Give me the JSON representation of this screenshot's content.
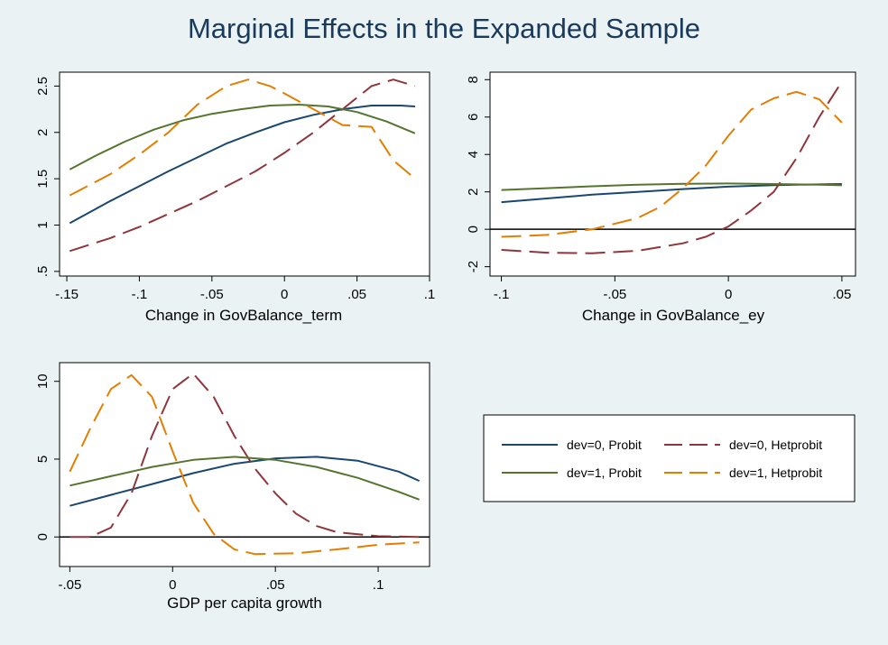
{
  "title": "Marginal Effects in the Expanded Sample",
  "colors": {
    "background": "#eaf2f3",
    "plot_bg": "#ffffff",
    "navy": "#1a476f",
    "maroon": "#90353b",
    "green": "#55752f",
    "orange": "#e37e00"
  },
  "legend": {
    "placement": "right of bottom-left panel",
    "entries": [
      {
        "label": "dev=0, Probit",
        "color": "#1a476f",
        "dash": "solid"
      },
      {
        "label": "dev=0, Hetprobit",
        "color": "#90353b",
        "dash": "dash"
      },
      {
        "label": "dev=1, Probit",
        "color": "#55752f",
        "dash": "solid"
      },
      {
        "label": "dev=1, Hetprobit",
        "color": "#e37e00",
        "dash": "dash"
      }
    ]
  },
  "chart_data": [
    {
      "type": "line",
      "xlabel": "Change in GovBalance_term",
      "ylabel": "",
      "xlim": [
        -0.155,
        0.1
      ],
      "ylim": [
        0.45,
        2.65
      ],
      "xticks": [
        {
          "v": -0.15,
          "label": "-.15"
        },
        {
          "v": -0.1,
          "label": "-.1"
        },
        {
          "v": -0.05,
          "label": "-.05"
        },
        {
          "v": 0,
          "label": "0"
        },
        {
          "v": 0.05,
          "label": ".05"
        },
        {
          "v": 0.1,
          "label": ".1"
        }
      ],
      "yticks": [
        {
          "v": 0.5,
          "label": ".5"
        },
        {
          "v": 1,
          "label": "1"
        },
        {
          "v": 1.5,
          "label": "1.5"
        },
        {
          "v": 2,
          "label": "2"
        },
        {
          "v": 2.5,
          "label": "2.5"
        }
      ],
      "zero_line": false,
      "series": [
        {
          "name": "dev=0, Probit",
          "color": "#1a476f",
          "dash": "solid",
          "points": [
            [
              -0.148,
              1.02
            ],
            [
              -0.12,
              1.26
            ],
            [
              -0.1,
              1.42
            ],
            [
              -0.08,
              1.58
            ],
            [
              -0.06,
              1.73
            ],
            [
              -0.04,
              1.88
            ],
            [
              -0.02,
              2.0
            ],
            [
              0.0,
              2.11
            ],
            [
              0.02,
              2.19
            ],
            [
              0.04,
              2.25
            ],
            [
              0.06,
              2.29
            ],
            [
              0.08,
              2.29
            ],
            [
              0.09,
              2.28
            ]
          ]
        },
        {
          "name": "dev=0, Hetprobit",
          "color": "#90353b",
          "dash": "dash",
          "points": [
            [
              -0.148,
              0.72
            ],
            [
              -0.12,
              0.86
            ],
            [
              -0.1,
              0.98
            ],
            [
              -0.08,
              1.12
            ],
            [
              -0.06,
              1.26
            ],
            [
              -0.04,
              1.42
            ],
            [
              -0.02,
              1.58
            ],
            [
              0.0,
              1.78
            ],
            [
              0.02,
              2.0
            ],
            [
              0.04,
              2.25
            ],
            [
              0.06,
              2.5
            ],
            [
              0.075,
              2.57
            ],
            [
              0.09,
              2.5
            ]
          ]
        },
        {
          "name": "dev=1, Probit",
          "color": "#55752f",
          "dash": "solid",
          "points": [
            [
              -0.148,
              1.6
            ],
            [
              -0.13,
              1.75
            ],
            [
              -0.11,
              1.9
            ],
            [
              -0.09,
              2.03
            ],
            [
              -0.07,
              2.13
            ],
            [
              -0.05,
              2.2
            ],
            [
              -0.03,
              2.25
            ],
            [
              -0.01,
              2.29
            ],
            [
              0.01,
              2.3
            ],
            [
              0.03,
              2.28
            ],
            [
              0.05,
              2.22
            ],
            [
              0.07,
              2.12
            ],
            [
              0.09,
              1.99
            ]
          ]
        },
        {
          "name": "dev=1, Hetprobit",
          "color": "#e37e00",
          "dash": "dash",
          "points": [
            [
              -0.148,
              1.32
            ],
            [
              -0.12,
              1.55
            ],
            [
              -0.1,
              1.76
            ],
            [
              -0.08,
              2.0
            ],
            [
              -0.06,
              2.3
            ],
            [
              -0.04,
              2.5
            ],
            [
              -0.025,
              2.57
            ],
            [
              -0.01,
              2.5
            ],
            [
              0.0,
              2.42
            ],
            [
              0.02,
              2.25
            ],
            [
              0.04,
              2.08
            ],
            [
              0.06,
              2.06
            ],
            [
              0.075,
              1.7
            ],
            [
              0.09,
              1.5
            ]
          ]
        }
      ]
    },
    {
      "type": "line",
      "xlabel": "Change in GovBalance_ey",
      "ylabel": "",
      "xlim": [
        -0.105,
        0.056
      ],
      "ylim": [
        -2.5,
        8.4
      ],
      "xticks": [
        {
          "v": -0.1,
          "label": "-.1"
        },
        {
          "v": -0.05,
          "label": "-.05"
        },
        {
          "v": 0,
          "label": "0"
        },
        {
          "v": 0.05,
          "label": ".05"
        }
      ],
      "yticks": [
        {
          "v": -2,
          "label": "-2"
        },
        {
          "v": 0,
          "label": "0"
        },
        {
          "v": 2,
          "label": "2"
        },
        {
          "v": 4,
          "label": "4"
        },
        {
          "v": 6,
          "label": "6"
        },
        {
          "v": 8,
          "label": "8"
        }
      ],
      "zero_line": true,
      "series": [
        {
          "name": "dev=0, Probit",
          "color": "#1a476f",
          "dash": "solid",
          "points": [
            [
              -0.1,
              1.45
            ],
            [
              -0.08,
              1.65
            ],
            [
              -0.06,
              1.85
            ],
            [
              -0.04,
              2.0
            ],
            [
              -0.02,
              2.15
            ],
            [
              0.0,
              2.28
            ],
            [
              0.02,
              2.36
            ],
            [
              0.04,
              2.4
            ],
            [
              0.05,
              2.42
            ]
          ]
        },
        {
          "name": "dev=0, Hetprobit",
          "color": "#90353b",
          "dash": "dash",
          "points": [
            [
              -0.1,
              -1.1
            ],
            [
              -0.08,
              -1.25
            ],
            [
              -0.06,
              -1.28
            ],
            [
              -0.04,
              -1.15
            ],
            [
              -0.02,
              -0.75
            ],
            [
              -0.01,
              -0.4
            ],
            [
              0.0,
              0.15
            ],
            [
              0.01,
              1.0
            ],
            [
              0.02,
              2.0
            ],
            [
              0.03,
              3.8
            ],
            [
              0.04,
              6.0
            ],
            [
              0.05,
              7.9
            ]
          ]
        },
        {
          "name": "dev=1, Probit",
          "color": "#55752f",
          "dash": "solid",
          "points": [
            [
              -0.1,
              2.1
            ],
            [
              -0.08,
              2.2
            ],
            [
              -0.06,
              2.3
            ],
            [
              -0.04,
              2.38
            ],
            [
              -0.02,
              2.43
            ],
            [
              0.0,
              2.45
            ],
            [
              0.02,
              2.42
            ],
            [
              0.04,
              2.38
            ],
            [
              0.05,
              2.35
            ]
          ]
        },
        {
          "name": "dev=1, Hetprobit",
          "color": "#e37e00",
          "dash": "dash",
          "points": [
            [
              -0.1,
              -0.4
            ],
            [
              -0.08,
              -0.3
            ],
            [
              -0.06,
              0.0
            ],
            [
              -0.04,
              0.6
            ],
            [
              -0.03,
              1.2
            ],
            [
              -0.02,
              2.2
            ],
            [
              -0.01,
              3.4
            ],
            [
              0.0,
              5.0
            ],
            [
              0.01,
              6.4
            ],
            [
              0.02,
              7.0
            ],
            [
              0.03,
              7.35
            ],
            [
              0.04,
              6.95
            ],
            [
              0.05,
              5.7
            ]
          ]
        }
      ]
    },
    {
      "type": "line",
      "xlabel": "GDP per capita growth",
      "ylabel": "",
      "xlim": [
        -0.055,
        0.125
      ],
      "ylim": [
        -1.9,
        11.2
      ],
      "xticks": [
        {
          "v": -0.05,
          "label": "-.05"
        },
        {
          "v": 0,
          "label": "0"
        },
        {
          "v": 0.05,
          "label": ".05"
        },
        {
          "v": 0.1,
          "label": ".1"
        }
      ],
      "yticks": [
        {
          "v": 0,
          "label": "0"
        },
        {
          "v": 5,
          "label": "5"
        },
        {
          "v": 10,
          "label": "10"
        }
      ],
      "zero_line": true,
      "series": [
        {
          "name": "dev=0, Probit",
          "color": "#1a476f",
          "dash": "solid",
          "points": [
            [
              -0.05,
              2.0
            ],
            [
              -0.03,
              2.7
            ],
            [
              -0.01,
              3.4
            ],
            [
              0.01,
              4.1
            ],
            [
              0.03,
              4.7
            ],
            [
              0.05,
              5.05
            ],
            [
              0.07,
              5.15
            ],
            [
              0.09,
              4.9
            ],
            [
              0.11,
              4.2
            ],
            [
              0.12,
              3.6
            ]
          ]
        },
        {
          "name": "dev=0, Hetprobit",
          "color": "#90353b",
          "dash": "dash",
          "points": [
            [
              -0.05,
              0.0
            ],
            [
              -0.04,
              0.0
            ],
            [
              -0.03,
              0.6
            ],
            [
              -0.02,
              2.8
            ],
            [
              -0.01,
              6.5
            ],
            [
              0.0,
              9.5
            ],
            [
              0.01,
              10.5
            ],
            [
              0.02,
              9.0
            ],
            [
              0.03,
              6.5
            ],
            [
              0.04,
              4.4
            ],
            [
              0.05,
              2.8
            ],
            [
              0.06,
              1.5
            ],
            [
              0.07,
              0.7
            ],
            [
              0.08,
              0.3
            ],
            [
              0.1,
              0.05
            ],
            [
              0.12,
              0.0
            ]
          ]
        },
        {
          "name": "dev=1, Probit",
          "color": "#55752f",
          "dash": "solid",
          "points": [
            [
              -0.05,
              3.3
            ],
            [
              -0.03,
              3.9
            ],
            [
              -0.01,
              4.5
            ],
            [
              0.01,
              4.95
            ],
            [
              0.03,
              5.15
            ],
            [
              0.05,
              4.95
            ],
            [
              0.07,
              4.5
            ],
            [
              0.09,
              3.8
            ],
            [
              0.11,
              2.9
            ],
            [
              0.12,
              2.4
            ]
          ]
        },
        {
          "name": "dev=1, Hetprobit",
          "color": "#e37e00",
          "dash": "dash",
          "points": [
            [
              -0.05,
              4.2
            ],
            [
              -0.04,
              7.0
            ],
            [
              -0.03,
              9.5
            ],
            [
              -0.02,
              10.4
            ],
            [
              -0.01,
              9.0
            ],
            [
              0.0,
              5.5
            ],
            [
              0.01,
              2.2
            ],
            [
              0.02,
              0.2
            ],
            [
              0.03,
              -0.8
            ],
            [
              0.04,
              -1.1
            ],
            [
              0.06,
              -1.05
            ],
            [
              0.08,
              -0.8
            ],
            [
              0.1,
              -0.5
            ],
            [
              0.12,
              -0.35
            ]
          ]
        }
      ]
    }
  ]
}
